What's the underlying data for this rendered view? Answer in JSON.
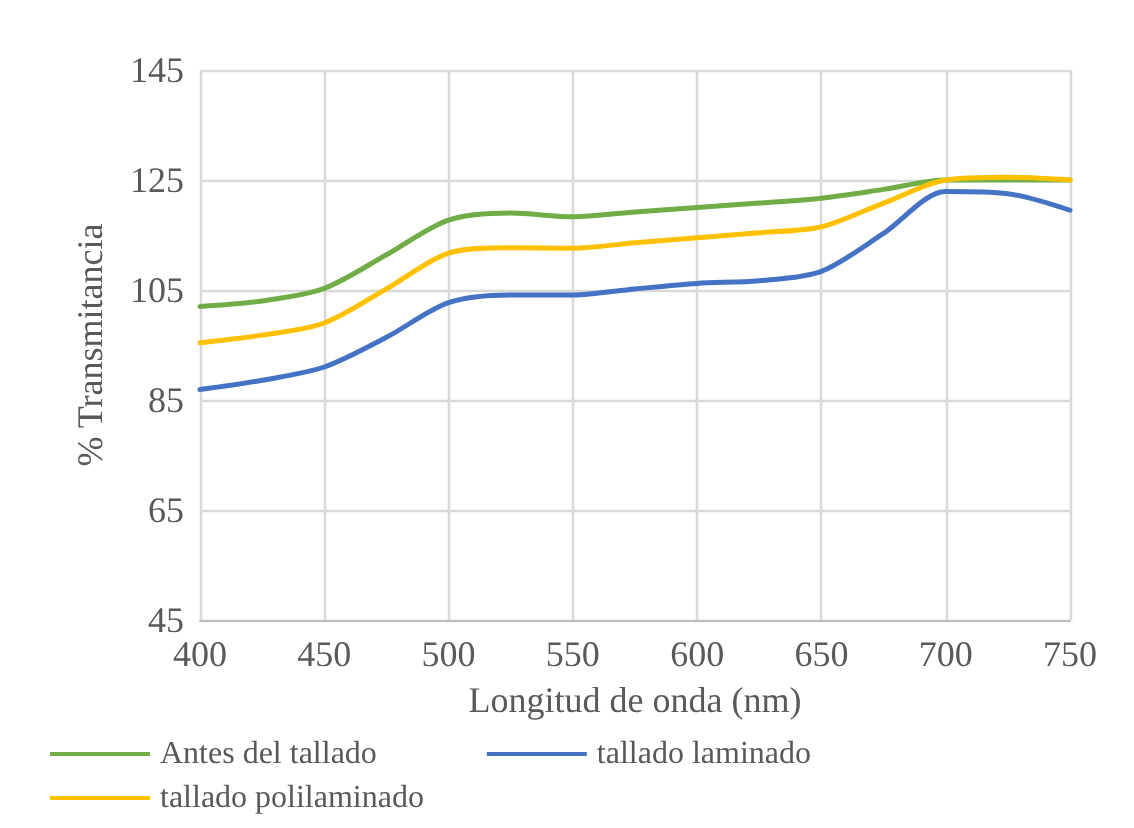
{
  "chart_data": {
    "type": "line",
    "xlabel": "Longitud de onda (nm)",
    "ylabel": "% Transmitancia",
    "x": [
      400,
      425,
      450,
      475,
      500,
      525,
      550,
      575,
      600,
      625,
      650,
      675,
      700,
      725,
      750
    ],
    "series": [
      {
        "name": "Antes del tallado",
        "color": "#70ad47",
        "values": [
          102,
          103,
          105.3,
          111.4,
          117.7,
          119,
          118.3,
          119.2,
          120,
          120.8,
          121.7,
          123.3,
          125,
          125,
          125
        ]
      },
      {
        "name": "tallado laminado",
        "color": "#4472c4",
        "values": [
          86.9,
          88.6,
          91,
          96.4,
          102.7,
          104.1,
          104.1,
          105.2,
          106.2,
          106.7,
          108.4,
          115.3,
          122.9,
          122.5,
          119.5
        ]
      },
      {
        "name": "tallado polilaminado",
        "color": "#ffc000",
        "values": [
          95.4,
          96.8,
          99,
          105.2,
          111.7,
          112.7,
          112.6,
          113.6,
          114.5,
          115.4,
          116.5,
          120.8,
          125,
          125.5,
          125
        ]
      }
    ],
    "xlim": [
      400,
      750
    ],
    "xticks": [
      400,
      450,
      500,
      550,
      600,
      650,
      700,
      750
    ],
    "ylim": [
      45,
      145
    ],
    "yticks": [
      45,
      65,
      85,
      105,
      125,
      145
    ],
    "grid": true,
    "legend": "bottom",
    "marker": "none",
    "line_style": "solid"
  }
}
